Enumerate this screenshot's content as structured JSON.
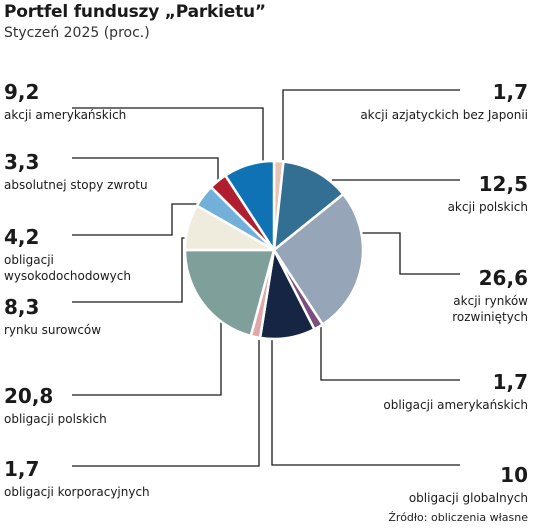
{
  "title": "Portfel funduszy „Parkietu”",
  "subtitle": "Styczeń 2025 (proc.)",
  "source": "Źródło: obliczenia własne",
  "chart_data": {
    "type": "pie",
    "title": "Portfel funduszy „Parkietu”",
    "subtitle": "Styczeń 2025 (proc.)",
    "slices": [
      {
        "label": "akcji azjatyckich bez Japonii",
        "value": 1.7,
        "display": "1,7",
        "color": "#e7c3b5"
      },
      {
        "label": "akcji polskich",
        "value": 12.5,
        "display": "12,5",
        "color": "#336f92"
      },
      {
        "label": "akcji rynków rozwiniętych",
        "value": 26.6,
        "display": "26,6",
        "color": "#97a5b9"
      },
      {
        "label": "obligacji amerykańskich",
        "value": 1.7,
        "display": "1,7",
        "color": "#7a4f7e"
      },
      {
        "label": "obligacji globalnych",
        "value": 10,
        "display": "10",
        "color": "#172545"
      },
      {
        "label": "obligacji korporacyjnych",
        "value": 1.7,
        "display": "1,7",
        "color": "#e0a7a7"
      },
      {
        "label": "obligacji polskich",
        "value": 20.8,
        "display": "20,8",
        "color": "#7fa09a"
      },
      {
        "label": "rynku surowców",
        "value": 8.3,
        "display": "8,3",
        "color": "#efebdd"
      },
      {
        "label": "obligacji wysokodochodowych",
        "value": 4.2,
        "display": "4,2",
        "color": "#72b0da"
      },
      {
        "label": "absolutnej stopy zwrotu",
        "value": 3.3,
        "display": "3,3",
        "color": "#b01e2f"
      },
      {
        "label": "akcji amerykańskich",
        "value": 9.2,
        "display": "9,2",
        "color": "#0f72b5"
      }
    ]
  }
}
